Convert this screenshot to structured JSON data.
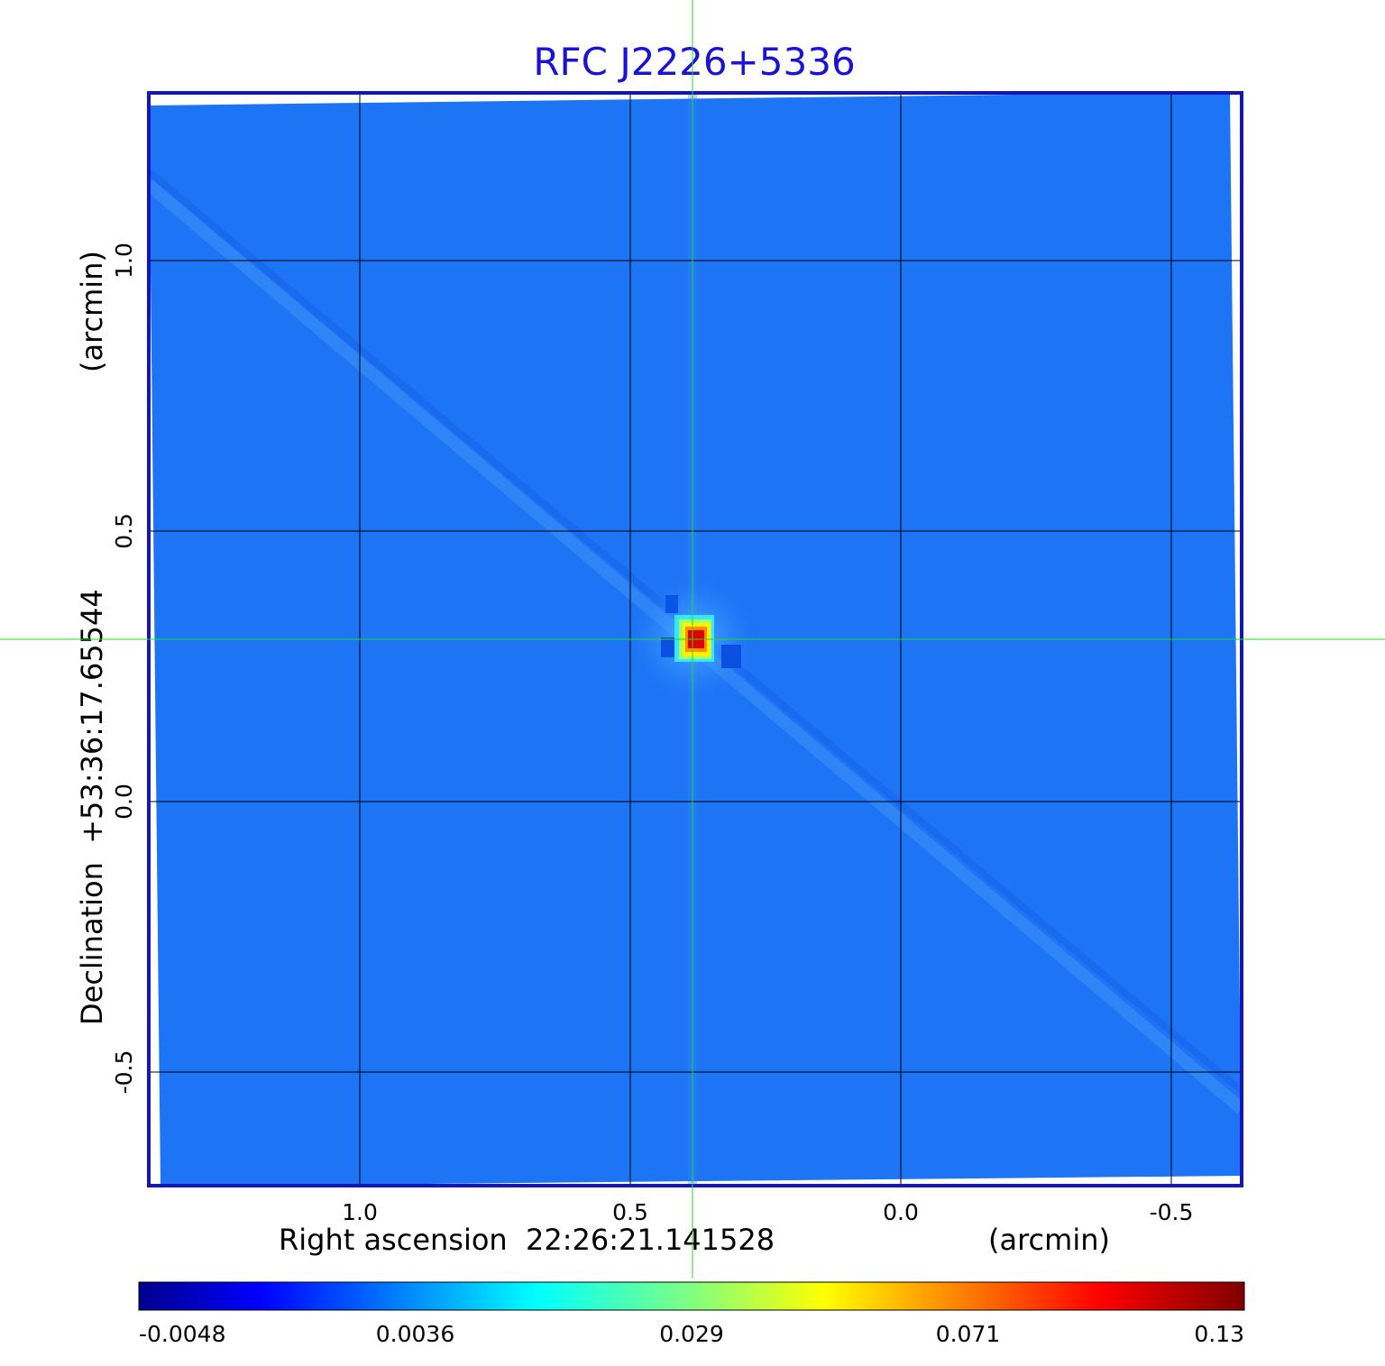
{
  "chart_data": {
    "type": "heatmap",
    "title": "RFC J2226+5336",
    "xlabel": "Right ascension  22:26:21.141528",
    "xunit": "(arcmin)",
    "ylabel": "Declination  +53:36:17.65544",
    "yunit": "(arcmin)",
    "xlim": [
      1.39,
      -0.63
    ],
    "ylim": [
      -0.71,
      1.31
    ],
    "x_ticks": [
      {
        "value": 1.0,
        "label": "1.0"
      },
      {
        "value": 0.5,
        "label": "0.5"
      },
      {
        "value": 0.0,
        "label": "0.0"
      },
      {
        "value": -0.5,
        "label": "-0.5"
      }
    ],
    "y_ticks": [
      {
        "value": 1.0,
        "label": "1.0"
      },
      {
        "value": 0.5,
        "label": "0.5"
      },
      {
        "value": 0.0,
        "label": "0.0"
      },
      {
        "value": -0.5,
        "label": "-0.5"
      }
    ],
    "grid": true,
    "crosshair": {
      "x": 0.385,
      "y": 0.3
    },
    "source_peak": {
      "x": 0.385,
      "y": 0.3,
      "value": 0.13
    },
    "background_level": 0.0,
    "colorbar": {
      "colormap": "jet",
      "labels": [
        "-0.0048",
        "0.0036",
        "0.029",
        "0.071",
        "0.13"
      ]
    },
    "colors": {
      "title": "#1a12d6",
      "frame": "#1515c0",
      "grid": "#000000",
      "crosshair": "#22dd22",
      "background_map": "#1d74f5"
    }
  }
}
